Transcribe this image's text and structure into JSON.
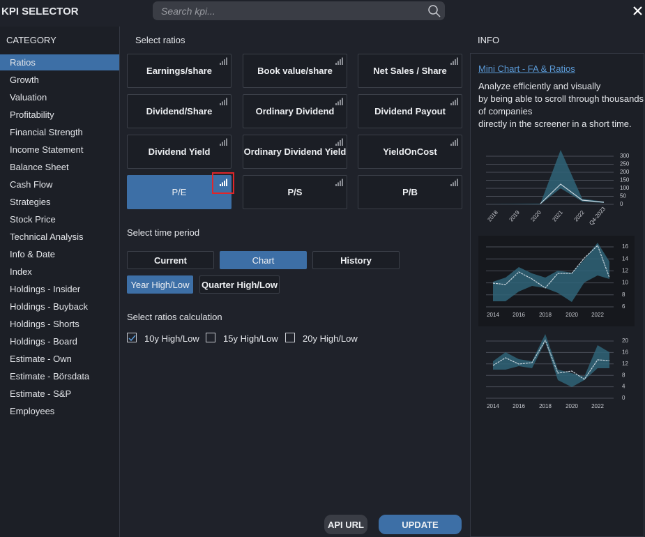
{
  "header": {
    "title": "KPI SELECTOR",
    "search_placeholder": "Search kpi..."
  },
  "category": {
    "title": "CATEGORY",
    "selected": 0,
    "items": [
      "Ratios",
      "Growth",
      "Valuation",
      "Profitability",
      "Financial Strength",
      "Income Statement",
      "Balance Sheet",
      "Cash Flow",
      "Strategies",
      "Stock Price",
      "Technical Analysis",
      "Info & Date",
      "Index",
      "Holdings - Insider",
      "Holdings - Buyback",
      "Holdings - Shorts",
      "Holdings - Board",
      "Estimate - Own",
      "Estimate - Börsdata",
      "Estimate - S&P",
      "Employees"
    ]
  },
  "ratios": {
    "title": "Select ratios",
    "selected": 9,
    "items": [
      "Earnings/share",
      "Book value/share",
      "Net Sales / Share",
      "Dividend/Share",
      "Ordinary Dividend",
      "Dividend Payout",
      "Dividend Yield",
      "Ordinary Dividend Yield",
      "YieldOnCost",
      "P/E",
      "P/S",
      "P/B"
    ]
  },
  "time_period": {
    "title": "Select time period",
    "options": [
      "Current",
      "Chart",
      "History"
    ],
    "selected": 1,
    "range_options": [
      "Year High/Low",
      "Quarter High/Low"
    ],
    "range_selected": 0
  },
  "calculation": {
    "title": "Select ratios calculation",
    "options": [
      {
        "label": "10y High/Low",
        "checked": true
      },
      {
        "label": "15y High/Low",
        "checked": false
      },
      {
        "label": "20y High/Low",
        "checked": false
      }
    ]
  },
  "info": {
    "title": "INFO",
    "link": "Mini Chart - FA & Ratios",
    "lines": [
      "Analyze efficiently and visually",
      "by being able to scroll through thousands",
      "of companies",
      "directly in the screener in a short time."
    ],
    "charts": [
      {
        "ylim": [
          0,
          300
        ],
        "yticks": [
          0,
          50,
          100,
          150,
          200,
          250,
          300
        ],
        "xlabels": [
          "2018",
          "2019",
          "2020",
          "2021",
          "2022",
          "Q4-2023"
        ]
      },
      {
        "ylim": [
          6,
          16
        ],
        "yticks": [
          6,
          8,
          10,
          12,
          14,
          16
        ],
        "xlabels": [
          "2014",
          "2016",
          "2018",
          "2020",
          "2022"
        ]
      },
      {
        "ylim": [
          0,
          20
        ],
        "yticks": [
          0,
          4,
          8,
          12,
          16,
          20
        ],
        "xlabels": [
          "2014",
          "2016",
          "2018",
          "2020",
          "2022"
        ]
      }
    ]
  },
  "actions": {
    "api_url": "API URL",
    "update": "UPDATE"
  }
}
